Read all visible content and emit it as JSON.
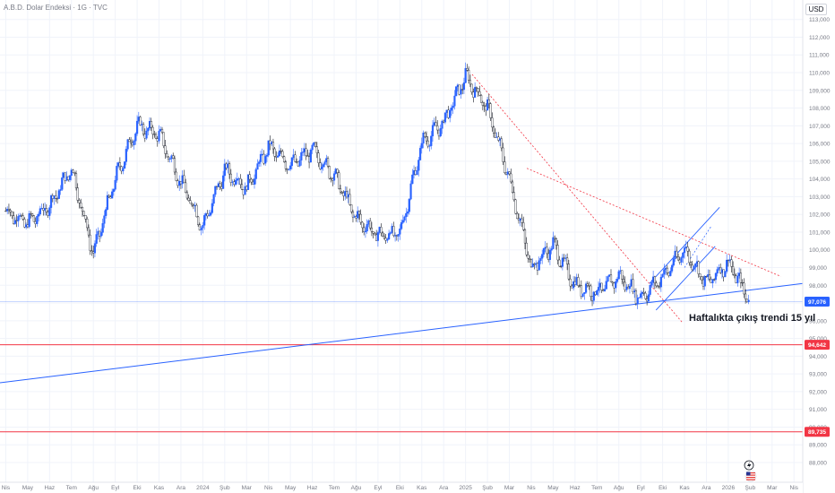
{
  "header": {
    "title": "A.B.D. Dolar Endeksi · 1G · TVC",
    "unit": "USD"
  },
  "annotation": "Haftalıkta çıkış trendi 15 yıl",
  "icons": [
    "lightning-icon",
    "us-flag-icon"
  ],
  "colors": {
    "up": "#2962ff",
    "down": "#131722",
    "trendline": "#2962ff",
    "resistance": "#f23645",
    "dashed": "#f23645",
    "current": "#2962ff",
    "grid": "#f0f3fa",
    "axis_text": "#787b86"
  },
  "chart_data": {
    "type": "candlestick",
    "title": "A.B.D. Dolar Endeksi · 1G · TVC",
    "ylabel": "USD",
    "ylim": [
      87.5,
      113.5
    ],
    "grid": true,
    "y_ticks": [
      "88,000",
      "89,000",
      "90,000",
      "91,000",
      "92,000",
      "93,000",
      "94,000",
      "95,000",
      "96,000",
      "97,000",
      "98,000",
      "99,000",
      "100,000",
      "101,000",
      "102,000",
      "103,000",
      "104,000",
      "105,000",
      "106,000",
      "107,000",
      "108,000",
      "109,000",
      "110,000",
      "111,000",
      "112,000",
      "113,000"
    ],
    "x_ticks": [
      "Nis",
      "May",
      "Haz",
      "Tem",
      "Ağu",
      "Eyl",
      "Eki",
      "Kas",
      "Ara",
      "2024",
      "Şub",
      "Mar",
      "Nis",
      "May",
      "Haz",
      "Tem",
      "Ağu",
      "Eyl",
      "Eki",
      "Kas",
      "Ara",
      "2025",
      "Şub",
      "Mar",
      "Nis",
      "May",
      "Haz",
      "Tem",
      "Ağu",
      "Eyl",
      "Eki",
      "Kas",
      "Ara",
      "2026",
      "Şub",
      "Mar",
      "Nis"
    ],
    "price_path": [
      [
        "Nis",
        102.2
      ],
      [
        "May",
        101.5
      ],
      [
        "Haz",
        102.5
      ],
      [
        "Tem",
        104.6
      ],
      [
        "Ağu",
        99.8
      ],
      [
        "Eyl",
        104.0
      ],
      [
        "Eki",
        107.0
      ],
      [
        "Kas",
        106.5
      ],
      [
        "Ara",
        103.8
      ],
      [
        "2024",
        101.3
      ],
      [
        "Şub",
        104.5
      ],
      [
        "Mar",
        103.5
      ],
      [
        "Nis",
        105.8
      ],
      [
        "May",
        104.8
      ],
      [
        "Haz",
        105.6
      ],
      [
        "Tem",
        104.2
      ],
      [
        "Ağu",
        101.8
      ],
      [
        "Eyl",
        100.8
      ],
      [
        "Eki",
        100.9
      ],
      [
        "Kas",
        106.0
      ],
      [
        "Ara",
        107.2
      ],
      [
        "2025",
        109.8
      ],
      [
        "Şub",
        108.0
      ],
      [
        "Mar",
        104.0
      ],
      [
        "Nis",
        99.0
      ],
      [
        "May",
        100.3
      ],
      [
        "Haz",
        98.0
      ],
      [
        "Tem",
        97.6
      ],
      [
        "Ağu",
        98.5
      ],
      [
        "Eyl",
        97.3
      ],
      [
        "Eki",
        98.5
      ],
      [
        "Kas",
        100.0
      ],
      [
        "Ara",
        98.1
      ],
      [
        "2026",
        99.3
      ],
      [
        "Şub",
        97.08
      ]
    ],
    "levels": [
      {
        "name": "current",
        "value": 97.076,
        "label": "97,076"
      },
      {
        "name": "resistance-1",
        "value": 94.642,
        "label": "94,642"
      },
      {
        "name": "resistance-2",
        "value": 89.735,
        "label": "89,735"
      }
    ],
    "annotation": "Haftalıkta çıkış trendi 15 yıl"
  }
}
